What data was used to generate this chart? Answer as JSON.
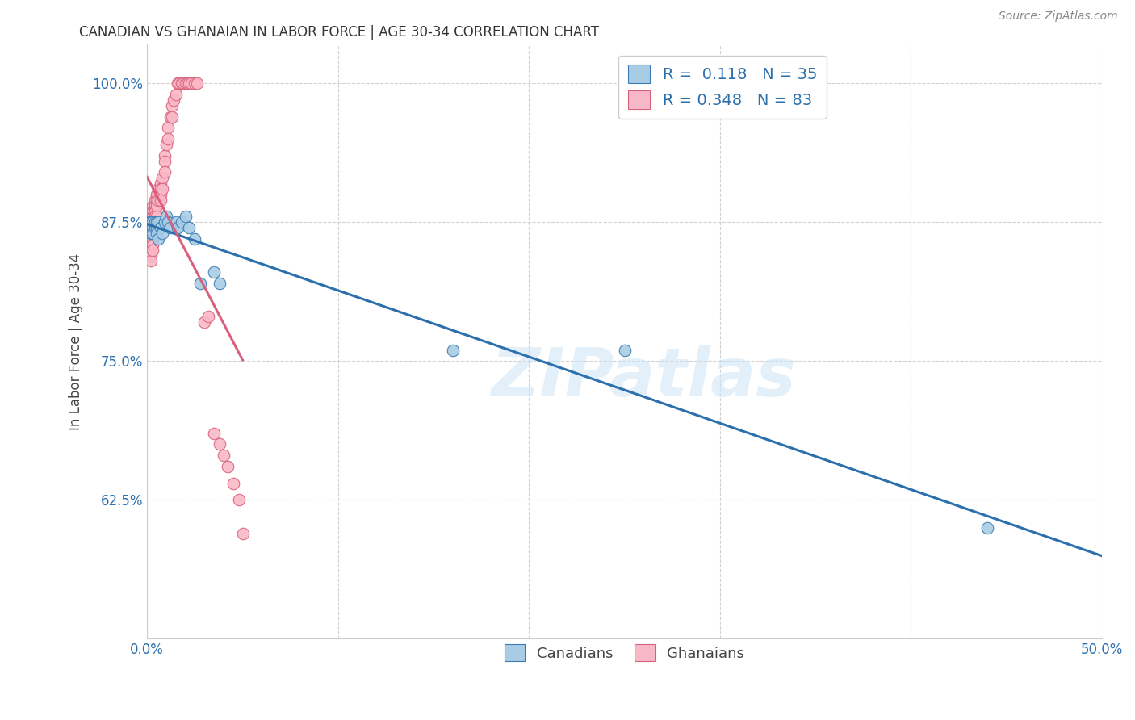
{
  "title": "CANADIAN VS GHANAIAN IN LABOR FORCE | AGE 30-34 CORRELATION CHART",
  "source": "Source: ZipAtlas.com",
  "ylabel": "In Labor Force | Age 30-34",
  "xlim": [
    0.0,
    0.5
  ],
  "ylim": [
    0.5,
    1.035
  ],
  "xtick_positions": [
    0.0,
    0.1,
    0.2,
    0.3,
    0.4,
    0.5
  ],
  "xtick_labels": [
    "0.0%",
    "",
    "",
    "",
    "",
    "50.0%"
  ],
  "ytick_positions": [
    0.625,
    0.75,
    0.875,
    1.0
  ],
  "ytick_labels": [
    "62.5%",
    "75.0%",
    "87.5%",
    "100.0%"
  ],
  "r_canadian": 0.118,
  "n_canadian": 35,
  "r_ghanaian": 0.348,
  "n_ghanaian": 83,
  "canadian_face_color": "#a8cce4",
  "canadian_edge_color": "#3a7ab5",
  "ghanaian_face_color": "#f9b8c8",
  "ghanaian_edge_color": "#d9607a",
  "canadian_line_color": "#2c6fad",
  "ghanaian_line_color": "#d95f7f",
  "watermark_text": "ZIPatlas",
  "canadian_x": [
    0.001,
    0.001,
    0.001,
    0.002,
    0.002,
    0.002,
    0.002,
    0.003,
    0.003,
    0.003,
    0.004,
    0.004,
    0.005,
    0.005,
    0.005,
    0.006,
    0.006,
    0.007,
    0.008,
    0.009,
    0.01,
    0.011,
    0.012,
    0.015,
    0.016,
    0.018,
    0.02,
    0.022,
    0.025,
    0.028,
    0.035,
    0.038,
    0.16,
    0.25,
    0.44
  ],
  "canadian_y": [
    0.875,
    0.875,
    0.87,
    0.875,
    0.875,
    0.87,
    0.865,
    0.875,
    0.87,
    0.865,
    0.875,
    0.87,
    0.875,
    0.87,
    0.865,
    0.875,
    0.86,
    0.87,
    0.865,
    0.875,
    0.88,
    0.875,
    0.87,
    0.875,
    0.87,
    0.875,
    0.88,
    0.87,
    0.86,
    0.82,
    0.83,
    0.82,
    0.76,
    0.76,
    0.6
  ],
  "ghanaian_x": [
    0.001,
    0.001,
    0.001,
    0.001,
    0.001,
    0.001,
    0.001,
    0.001,
    0.001,
    0.001,
    0.001,
    0.002,
    0.002,
    0.002,
    0.002,
    0.002,
    0.002,
    0.002,
    0.002,
    0.002,
    0.002,
    0.002,
    0.002,
    0.003,
    0.003,
    0.003,
    0.003,
    0.003,
    0.003,
    0.003,
    0.003,
    0.003,
    0.004,
    0.004,
    0.004,
    0.004,
    0.004,
    0.004,
    0.005,
    0.005,
    0.005,
    0.005,
    0.005,
    0.006,
    0.006,
    0.006,
    0.006,
    0.007,
    0.007,
    0.007,
    0.007,
    0.008,
    0.008,
    0.009,
    0.009,
    0.009,
    0.01,
    0.011,
    0.011,
    0.012,
    0.013,
    0.013,
    0.014,
    0.015,
    0.016,
    0.017,
    0.018,
    0.019,
    0.02,
    0.021,
    0.022,
    0.023,
    0.025,
    0.026,
    0.03,
    0.032,
    0.035,
    0.038,
    0.04,
    0.042,
    0.045,
    0.048,
    0.05
  ],
  "ghanaian_y": [
    0.875,
    0.875,
    0.875,
    0.875,
    0.875,
    0.875,
    0.87,
    0.865,
    0.86,
    0.855,
    0.85,
    0.875,
    0.875,
    0.875,
    0.875,
    0.875,
    0.87,
    0.865,
    0.86,
    0.855,
    0.85,
    0.845,
    0.84,
    0.89,
    0.885,
    0.88,
    0.875,
    0.87,
    0.865,
    0.86,
    0.855,
    0.85,
    0.895,
    0.89,
    0.885,
    0.88,
    0.875,
    0.87,
    0.9,
    0.895,
    0.89,
    0.88,
    0.87,
    0.905,
    0.9,
    0.895,
    0.875,
    0.91,
    0.905,
    0.9,
    0.895,
    0.915,
    0.905,
    0.935,
    0.93,
    0.92,
    0.945,
    0.96,
    0.95,
    0.97,
    0.98,
    0.97,
    0.985,
    0.99,
    1.0,
    1.0,
    1.0,
    1.0,
    1.0,
    1.0,
    1.0,
    1.0,
    1.0,
    1.0,
    0.785,
    0.79,
    0.685,
    0.675,
    0.665,
    0.655,
    0.64,
    0.625,
    0.595
  ]
}
